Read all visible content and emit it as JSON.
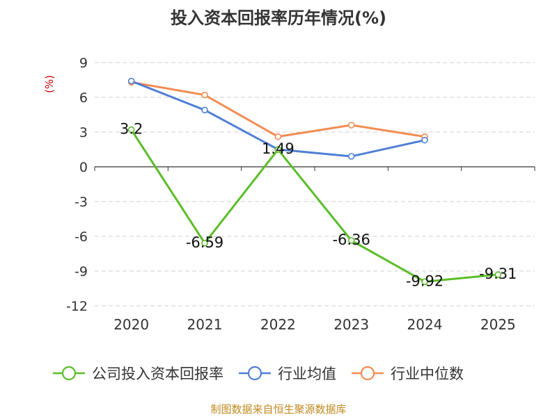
{
  "chart_data": {
    "type": "line",
    "title": "投入资本回报率历年情况(%)",
    "ylabel": "(%)",
    "categories": [
      "2020",
      "2021",
      "2022",
      "2023",
      "2024",
      "2025"
    ],
    "yticks": [
      9,
      6,
      3,
      0,
      -3,
      -6,
      -9,
      -12
    ],
    "ylim": [
      -12,
      9
    ],
    "grid": true,
    "legend_position": "bottom",
    "series": [
      {
        "name": "公司投入资本回报率",
        "color": "#5bbd28",
        "values": [
          3.2,
          -6.59,
          1.49,
          -6.36,
          -9.92,
          -9.31
        ],
        "labels": [
          "3.2",
          "-6.59",
          "1.49",
          "-6.36",
          "-9.92",
          "-9.31"
        ]
      },
      {
        "name": "行业均值",
        "color": "#4f7fd6",
        "values": [
          7.4,
          4.9,
          1.5,
          0.9,
          2.3,
          null
        ]
      },
      {
        "name": "行业中位数",
        "color": "#f28c52",
        "values": [
          7.3,
          6.2,
          2.6,
          3.6,
          2.6,
          null
        ]
      }
    ]
  },
  "source": "制图数据来自恒生聚源数据库"
}
